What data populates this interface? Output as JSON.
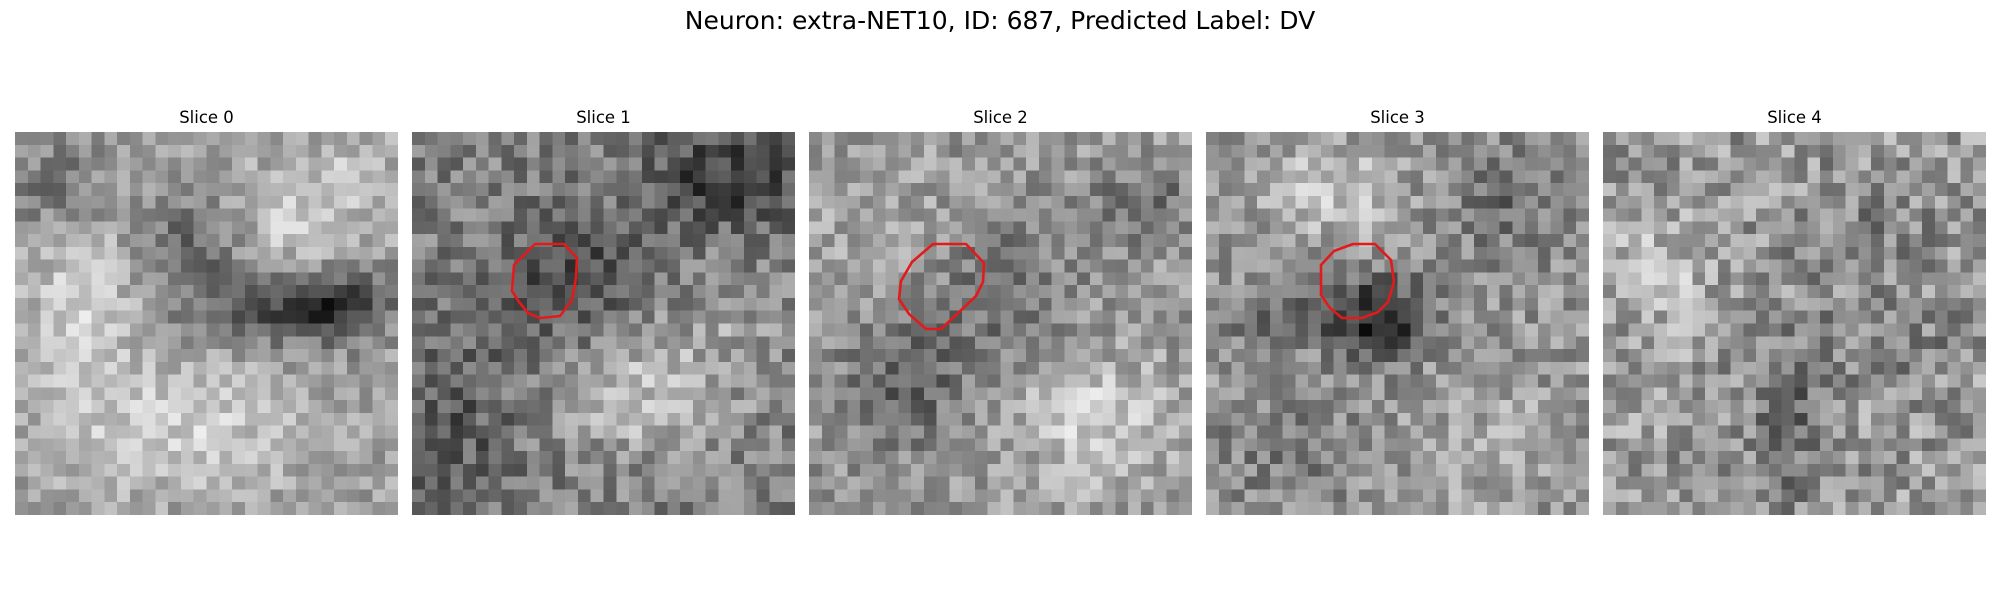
{
  "figure": {
    "title": "Neuron: extra-NET10, ID: 687, Predicted Label: DV",
    "contour_color": "#e31a1c",
    "colormap": "gray",
    "panels": [
      {
        "title": "Slice 0",
        "contour": false
      },
      {
        "title": "Slice 1",
        "contour": true
      },
      {
        "title": "Slice 2",
        "contour": true
      },
      {
        "title": "Slice 3",
        "contour": true
      },
      {
        "title": "Slice 4",
        "contour": false
      }
    ]
  }
}
